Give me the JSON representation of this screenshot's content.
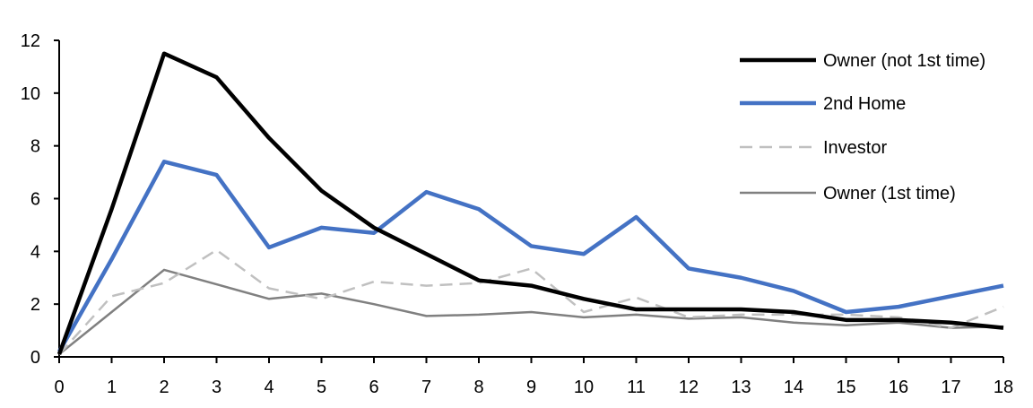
{
  "chart_data": {
    "type": "line",
    "title": "",
    "xlabel": "",
    "ylabel": "",
    "x": [
      0,
      1,
      2,
      3,
      4,
      5,
      6,
      7,
      8,
      9,
      10,
      11,
      12,
      13,
      14,
      15,
      16,
      17,
      18
    ],
    "xlim": [
      0,
      18
    ],
    "ylim": [
      0,
      12
    ],
    "yticks": [
      0,
      2,
      4,
      6,
      8,
      10,
      12
    ],
    "grid": false,
    "legend_placement": "top-right",
    "series": [
      {
        "name": "Owner (not 1st time)",
        "color": "#000000",
        "style": "solid-thick",
        "values": [
          0.1,
          5.6,
          11.5,
          10.6,
          8.3,
          6.3,
          4.9,
          3.9,
          2.9,
          2.7,
          2.2,
          1.8,
          1.8,
          1.8,
          1.7,
          1.4,
          1.4,
          1.3,
          1.1
        ]
      },
      {
        "name": "2nd Home",
        "color": "#4472C4",
        "style": "solid-thick",
        "values": [
          0.2,
          3.7,
          7.4,
          6.9,
          4.15,
          4.9,
          4.7,
          6.25,
          5.6,
          4.2,
          3.9,
          5.3,
          3.35,
          3.0,
          2.5,
          1.7,
          1.9,
          2.3,
          2.7
        ]
      },
      {
        "name": "Investor",
        "color": "#C0C0C0",
        "style": "dashed",
        "values": [
          0.1,
          2.3,
          2.8,
          4.05,
          2.6,
          2.2,
          2.85,
          2.7,
          2.8,
          3.35,
          1.7,
          2.25,
          1.5,
          1.6,
          1.6,
          1.6,
          1.5,
          1.1,
          1.9
        ]
      },
      {
        "name": "Owner (1st time)",
        "color": "#808080",
        "style": "solid-thin",
        "values": [
          0.1,
          1.7,
          3.3,
          2.75,
          2.2,
          2.4,
          2.0,
          1.55,
          1.6,
          1.7,
          1.5,
          1.6,
          1.45,
          1.5,
          1.3,
          1.2,
          1.3,
          1.1,
          1.15
        ]
      }
    ]
  }
}
